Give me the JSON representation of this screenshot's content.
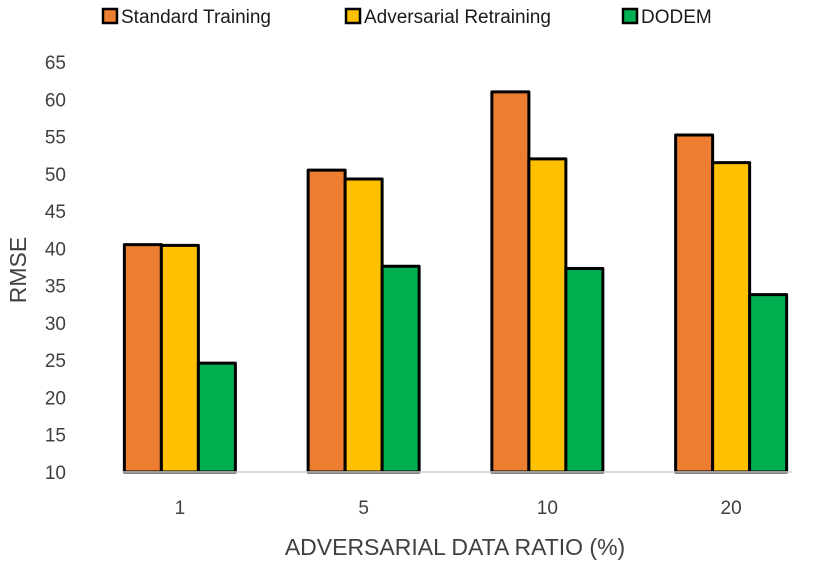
{
  "chart_data": {
    "type": "bar",
    "title": "",
    "xlabel": "ADVERSARIAL DATA RATIO (%)",
    "ylabel": "RMSE",
    "categories": [
      "1",
      "5",
      "10",
      "20"
    ],
    "ylim": [
      10,
      65
    ],
    "yticks": [
      10,
      15,
      20,
      25,
      30,
      35,
      40,
      45,
      50,
      55,
      60,
      65
    ],
    "grid": false,
    "legend_position": "top",
    "series": [
      {
        "name": "Standard Training",
        "color": "#ED7D31",
        "values": [
          40.5,
          50.5,
          61.0,
          55.2
        ]
      },
      {
        "name": "Adversarial Retraining",
        "color": "#FFC000",
        "values": [
          40.4,
          49.3,
          52.0,
          51.5
        ]
      },
      {
        "name": "DODEM",
        "color": "#00B050",
        "values": [
          24.6,
          37.6,
          37.3,
          33.8
        ]
      }
    ]
  }
}
